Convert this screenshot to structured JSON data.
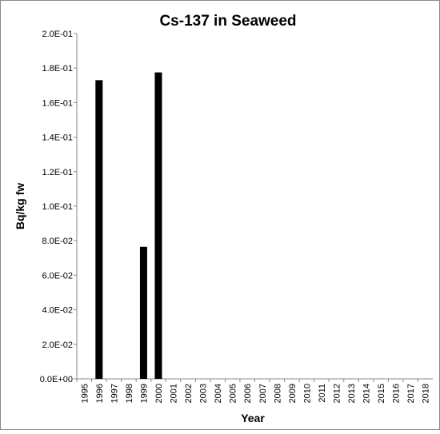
{
  "chart_data": {
    "type": "bar",
    "title": "Cs-137 in Seaweed",
    "x_label": "Year",
    "y_label": "Bq/kg fw",
    "categories": [
      "1995",
      "1996",
      "1997",
      "1998",
      "1999",
      "2000",
      "2001",
      "2002",
      "2003",
      "2004",
      "2005",
      "2006",
      "2007",
      "2008",
      "2009",
      "2010",
      "2011",
      "2012",
      "2013",
      "2014",
      "2015",
      "2016",
      "2017",
      "2018"
    ],
    "values": [
      null,
      0.173,
      null,
      null,
      0.0765,
      0.1775,
      null,
      null,
      null,
      null,
      null,
      null,
      null,
      null,
      null,
      null,
      null,
      null,
      null,
      null,
      null,
      null,
      null,
      null
    ],
    "color": "#000000",
    "ylim": [
      0,
      0.2
    ],
    "yticks": [
      {
        "value": 0,
        "label": "0.0E+00"
      },
      {
        "value": 0.02,
        "label": "2.0E-02"
      },
      {
        "value": 0.04,
        "label": "4.0E-02"
      },
      {
        "value": 0.06,
        "label": "6.0E-02"
      },
      {
        "value": 0.08,
        "label": "8.0E-02"
      },
      {
        "value": 0.1,
        "label": "1.0E-01"
      },
      {
        "value": 0.12,
        "label": "1.2E-01"
      },
      {
        "value": 0.14,
        "label": "1.4E-01"
      },
      {
        "value": 0.16,
        "label": "1.6E-01"
      },
      {
        "value": 0.18,
        "label": "1.8E-01"
      },
      {
        "value": 0.2,
        "label": "2.0E-01"
      }
    ],
    "grid": false
  }
}
